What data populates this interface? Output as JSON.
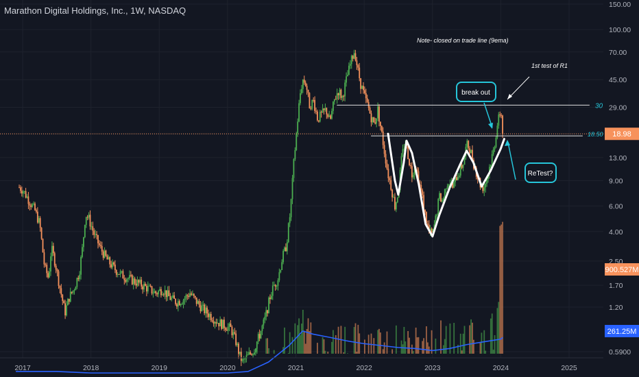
{
  "header": {
    "title": "Marathon Digital Holdings, Inc., 1W, NASDAQ"
  },
  "colors": {
    "background": "#131722",
    "up": "#4caf50",
    "down": "#f7925c",
    "grid": "#1e222d",
    "text": "#b2b5be",
    "annot": "#26c6da",
    "ema": "#2962ff",
    "current_price_bg": "#f7925c",
    "volume_avg_bg": "#2962ff"
  },
  "chart_data": {
    "type": "candlestick",
    "scale": "log",
    "x_ticks": [
      "2017",
      "2018",
      "2019",
      "2020",
      "2021",
      "2022",
      "2023",
      "2024",
      "2025"
    ],
    "y_ticks": [
      "150.00",
      "100.00",
      "70.00",
      "45.00",
      "29.00",
      "18.98",
      "13.00",
      "9.00",
      "6.00",
      "4.00",
      "2.50",
      "1.70",
      "1.20",
      "0.5900"
    ],
    "price_path": [
      [
        2016.9,
        8.4
      ],
      [
        2017.0,
        7.8
      ],
      [
        2017.1,
        6.5
      ],
      [
        2017.18,
        5.6
      ],
      [
        2017.25,
        4.5
      ],
      [
        2017.32,
        2.3
      ],
      [
        2017.38,
        1.9
      ],
      [
        2017.42,
        3.1
      ],
      [
        2017.48,
        2.4
      ],
      [
        2017.55,
        1.6
      ],
      [
        2017.62,
        1.1
      ],
      [
        2017.68,
        1.4
      ],
      [
        2017.75,
        1.6
      ],
      [
        2017.83,
        2.1
      ],
      [
        2017.88,
        3.2
      ],
      [
        2017.92,
        5.3
      ],
      [
        2017.97,
        4.9
      ],
      [
        2018.05,
        3.8
      ],
      [
        2018.15,
        3.0
      ],
      [
        2018.25,
        2.5
      ],
      [
        2018.35,
        2.2
      ],
      [
        2018.45,
        2.0
      ],
      [
        2018.55,
        1.9
      ],
      [
        2018.65,
        1.8
      ],
      [
        2018.75,
        1.7
      ],
      [
        2018.85,
        1.6
      ],
      [
        2018.95,
        1.5
      ],
      [
        2019.05,
        1.6
      ],
      [
        2019.15,
        1.4
      ],
      [
        2019.25,
        1.3
      ],
      [
        2019.35,
        1.35
      ],
      [
        2019.45,
        1.5
      ],
      [
        2019.55,
        1.3
      ],
      [
        2019.65,
        1.15
      ],
      [
        2019.75,
        1.05
      ],
      [
        2019.85,
        0.95
      ],
      [
        2019.95,
        0.9
      ],
      [
        2020.05,
        0.85
      ],
      [
        2020.12,
        0.7
      ],
      [
        2020.18,
        0.55
      ],
      [
        2020.22,
        0.5
      ],
      [
        2020.3,
        0.55
      ],
      [
        2020.38,
        0.6
      ],
      [
        2020.46,
        0.75
      ],
      [
        2020.55,
        1.0
      ],
      [
        2020.62,
        1.4
      ],
      [
        2020.68,
        1.7
      ],
      [
        2020.74,
        1.9
      ],
      [
        2020.8,
        2.6
      ],
      [
        2020.86,
        3.2
      ],
      [
        2020.92,
        5.5
      ],
      [
        2020.97,
        12.0
      ],
      [
        2021.02,
        22.0
      ],
      [
        2021.06,
        35.0
      ],
      [
        2021.1,
        45.0
      ],
      [
        2021.15,
        42.0
      ],
      [
        2021.2,
        30.0
      ],
      [
        2021.26,
        32.0
      ],
      [
        2021.32,
        24.0
      ],
      [
        2021.38,
        26.0
      ],
      [
        2021.44,
        28.0
      ],
      [
        2021.5,
        23.0
      ],
      [
        2021.56,
        32.0
      ],
      [
        2021.62,
        38.0
      ],
      [
        2021.68,
        34.0
      ],
      [
        2021.74,
        45.0
      ],
      [
        2021.8,
        58.0
      ],
      [
        2021.86,
        72.0
      ],
      [
        2021.9,
        55.0
      ],
      [
        2021.95,
        42.0
      ],
      [
        2022.0,
        35.0
      ],
      [
        2022.05,
        30.0
      ],
      [
        2022.1,
        25.0
      ],
      [
        2022.15,
        22.0
      ],
      [
        2022.2,
        28.0
      ],
      [
        2022.25,
        20.0
      ],
      [
        2022.3,
        14.0
      ],
      [
        2022.35,
        10.0
      ],
      [
        2022.4,
        8.0
      ],
      [
        2022.45,
        6.0
      ],
      [
        2022.5,
        7.5
      ],
      [
        2022.55,
        13.0
      ],
      [
        2022.6,
        17.0
      ],
      [
        2022.65,
        13.0
      ],
      [
        2022.7,
        10.0
      ],
      [
        2022.75,
        12.0
      ],
      [
        2022.8,
        9.0
      ],
      [
        2022.85,
        7.0
      ],
      [
        2022.9,
        5.0
      ],
      [
        2022.95,
        4.0
      ],
      [
        2023.0,
        3.8
      ],
      [
        2023.05,
        5.0
      ],
      [
        2023.1,
        7.0
      ],
      [
        2023.15,
        6.5
      ],
      [
        2023.2,
        8.5
      ],
      [
        2023.25,
        9.0
      ],
      [
        2023.3,
        8.0
      ],
      [
        2023.35,
        9.5
      ],
      [
        2023.4,
        10.5
      ],
      [
        2023.45,
        12.0
      ],
      [
        2023.5,
        16.0
      ],
      [
        2023.55,
        15.0
      ],
      [
        2023.6,
        12.0
      ],
      [
        2023.65,
        10.0
      ],
      [
        2023.7,
        8.5
      ],
      [
        2023.75,
        8.0
      ],
      [
        2023.8,
        9.5
      ],
      [
        2023.85,
        12.0
      ],
      [
        2023.9,
        15.0
      ],
      [
        2023.95,
        22.0
      ],
      [
        2024.0,
        28.0
      ],
      [
        2024.03,
        18.98
      ]
    ],
    "ema_path": [
      [
        2016.9,
        0.43
      ],
      [
        2017.5,
        0.43
      ],
      [
        2018.0,
        0.42
      ],
      [
        2019.0,
        0.42
      ],
      [
        2020.0,
        0.42
      ],
      [
        2020.3,
        0.43
      ],
      [
        2020.6,
        0.5
      ],
      [
        2020.9,
        0.65
      ],
      [
        2021.1,
        0.82
      ],
      [
        2021.25,
        0.78
      ],
      [
        2021.5,
        0.74
      ],
      [
        2021.75,
        0.7
      ],
      [
        2022.0,
        0.67
      ],
      [
        2022.25,
        0.65
      ],
      [
        2022.5,
        0.63
      ],
      [
        2022.75,
        0.62
      ],
      [
        2023.0,
        0.6
      ],
      [
        2023.25,
        0.62
      ],
      [
        2023.5,
        0.66
      ],
      [
        2023.75,
        0.69
      ],
      [
        2024.0,
        0.72
      ],
      [
        2024.03,
        0.74
      ]
    ],
    "volume_path": [
      [
        2020.0,
        0.45
      ],
      [
        2020.7,
        0.55
      ],
      [
        2021.0,
        0.75
      ],
      [
        2021.1,
        0.88
      ],
      [
        2021.2,
        0.7
      ],
      [
        2021.5,
        0.68
      ],
      [
        2021.8,
        0.72
      ],
      [
        2022.0,
        0.6
      ],
      [
        2022.3,
        0.62
      ],
      [
        2022.5,
        0.66
      ],
      [
        2022.9,
        0.62
      ],
      [
        2023.0,
        0.8
      ],
      [
        2023.2,
        0.65
      ],
      [
        2023.5,
        0.74
      ],
      [
        2023.7,
        0.66
      ],
      [
        2023.95,
        0.85
      ],
      [
        2024.0,
        1.8
      ],
      [
        2024.02,
        2.1
      ]
    ],
    "annotations": {
      "note": "Note- closed on trade line (9ema)",
      "r1": "1st test of R1",
      "breakout": "break out",
      "retest": "ReTest?",
      "level_30": "30",
      "level_1850": "18.50"
    },
    "price_labels": {
      "current": "18.98",
      "volume": "900.527M",
      "volume_avg": "261.25M"
    }
  }
}
